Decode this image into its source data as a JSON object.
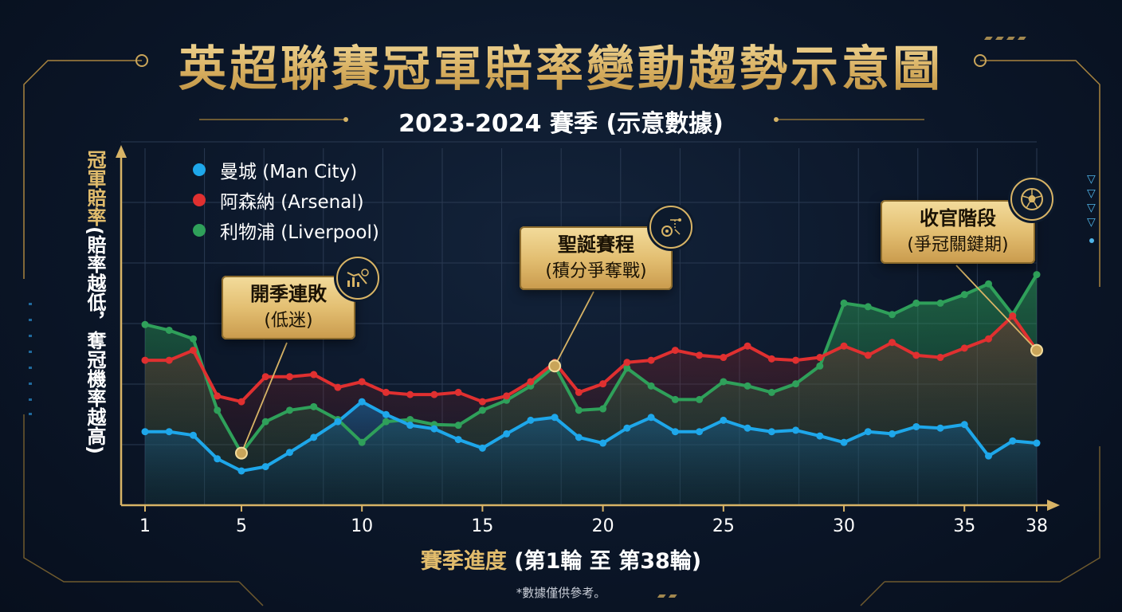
{
  "title": "英超聯賽冠軍賠率變動趨勢示意圖",
  "subtitle": "2023-2024 賽季 (示意數據)",
  "y_axis": {
    "main": "冠軍賠率",
    "note": "(賠率越低，奪冠機率越高)"
  },
  "x_axis": {
    "main": "賽季進度",
    "note": "(第1輪 至 第38輪)"
  },
  "footnote": "*數據僅供參考。",
  "legend": [
    {
      "label": "曼城 (Man City)",
      "color": "#1ea7ea"
    },
    {
      "label": "阿森納 (Arsenal)",
      "color": "#e03030"
    },
    {
      "label": "利物浦 (Liverpool)",
      "color": "#2fa05a"
    }
  ],
  "callouts": [
    {
      "title": "開季連敗",
      "sub": "(低迷)",
      "icon": "chart-decline-icon"
    },
    {
      "title": "聖誕賽程",
      "sub": "(積分爭奪戰)",
      "icon": "gear-strategy-icon"
    },
    {
      "title": "收官階段",
      "sub": "(爭冠關鍵期)",
      "icon": "football-icon"
    }
  ],
  "chart_data": {
    "type": "line",
    "title": "英超聯賽冠軍賠率變動趨勢示意圖",
    "subtitle": "2023-2024 賽季 (示意數據)",
    "xlabel": "賽季進度 (第1輪 至 第38輪)",
    "ylabel": "冠軍賠率 (賠率越低，奪冠機率越高)",
    "x_ticks": [
      1,
      5,
      10,
      15,
      20,
      25,
      30,
      35,
      38
    ],
    "x_range": [
      1,
      38
    ],
    "y_range": [
      0,
      10
    ],
    "y_ticks_labeled": false,
    "grid": true,
    "legend_position": "top-left",
    "x": [
      1,
      2,
      3,
      4,
      5,
      6,
      7,
      8,
      9,
      10,
      11,
      12,
      13,
      14,
      15,
      16,
      17,
      18,
      19,
      20,
      21,
      22,
      23,
      24,
      25,
      26,
      27,
      28,
      29,
      30,
      31,
      32,
      33,
      34,
      35,
      36,
      37,
      38
    ],
    "series": [
      {
        "name": "曼城 (Man City)",
        "color": "#1ea7ea",
        "values": [
          2.06,
          2.06,
          1.96,
          1.3,
          0.96,
          1.08,
          1.48,
          1.9,
          2.34,
          2.9,
          2.54,
          2.24,
          2.14,
          1.84,
          1.6,
          2.0,
          2.38,
          2.46,
          1.9,
          1.74,
          2.16,
          2.46,
          2.06,
          2.06,
          2.38,
          2.16,
          2.06,
          2.1,
          1.94,
          1.76,
          2.06,
          2.0,
          2.2,
          2.16,
          2.26,
          1.38,
          1.8,
          1.74
        ]
      },
      {
        "name": "阿森納 (Arsenal)",
        "color": "#e03030",
        "values": [
          4.06,
          4.06,
          4.34,
          3.06,
          2.9,
          3.6,
          3.6,
          3.66,
          3.3,
          3.46,
          3.16,
          3.1,
          3.1,
          3.16,
          2.9,
          3.06,
          3.46,
          4.0,
          3.16,
          3.4,
          4.0,
          4.06,
          4.34,
          4.2,
          4.14,
          4.46,
          4.1,
          4.06,
          4.14,
          4.46,
          4.2,
          4.56,
          4.2,
          4.14,
          4.4,
          4.66,
          5.3,
          4.34
        ]
      },
      {
        "name": "利物浦 (Liverpool)",
        "color": "#2fa05a",
        "values": [
          5.06,
          4.9,
          4.66,
          2.66,
          1.46,
          2.34,
          2.66,
          2.76,
          2.4,
          1.76,
          2.34,
          2.4,
          2.26,
          2.24,
          2.66,
          2.94,
          3.34,
          3.9,
          2.66,
          2.7,
          3.84,
          3.34,
          2.96,
          2.96,
          3.46,
          3.34,
          3.16,
          3.4,
          3.9,
          5.66,
          5.56,
          5.34,
          5.66,
          5.66,
          5.9,
          6.2,
          5.34,
          6.46
        ]
      }
    ],
    "annotations": [
      {
        "text": "開季連敗 (低迷)",
        "x": 5,
        "series": "利物浦 (Liverpool)"
      },
      {
        "text": "聖誕賽程 (積分爭奪戰)",
        "x": 18,
        "series": "利物浦 (Liverpool)"
      },
      {
        "text": "收官階段 (爭冠關鍵期)",
        "x": 38,
        "series": "阿森納 (Arsenal)"
      }
    ]
  }
}
